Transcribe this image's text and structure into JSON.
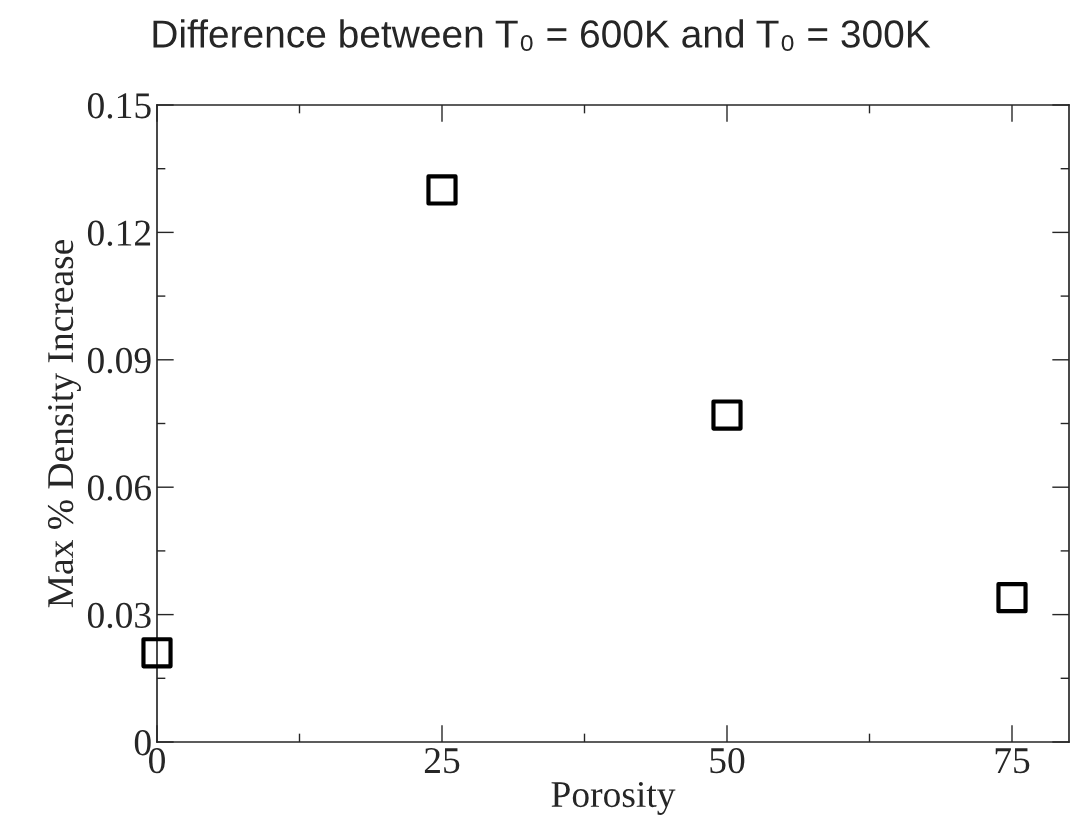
{
  "chart_data": {
    "type": "scatter",
    "title": "Difference between T₀ = 600K and T₀ = 300K",
    "xlabel": "Porosity",
    "ylabel": "Max % Density Increase",
    "x": [
      0,
      25,
      50,
      75
    ],
    "series": [
      {
        "color": "#000000",
        "values": [
          0.021,
          0.13,
          0.077,
          0.034
        ]
      }
    ],
    "marker": "square",
    "xlim": [
      0,
      80
    ],
    "ylim": [
      0,
      0.15
    ],
    "xticks": [
      0,
      25,
      50,
      75
    ],
    "yticks": [
      0,
      0.03,
      0.06,
      0.09,
      0.12,
      0.15
    ],
    "grid": false,
    "legend": false
  }
}
